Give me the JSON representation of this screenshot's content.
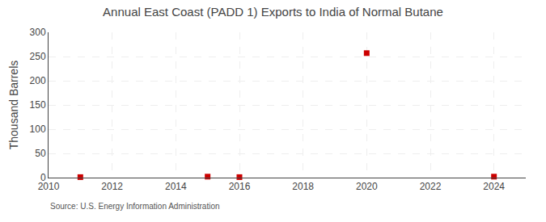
{
  "chart_data": {
    "type": "scatter",
    "title": "Annual East Coast (PADD 1) Exports to India of Normal Butane",
    "ylabel": "Thousand Barrels",
    "annotations": [
      "Source: U.S. Energy Information Administration"
    ],
    "x": [
      2011,
      2015,
      2016,
      2020,
      2024
    ],
    "values": [
      1,
      2,
      1,
      257,
      2
    ],
    "color": "#cc0000",
    "marker": "square",
    "xlim": [
      2010,
      2025
    ],
    "xticks": [
      2010,
      2012,
      2014,
      2016,
      2018,
      2020,
      2022,
      2024
    ],
    "ylim": [
      0,
      300
    ],
    "yticks": [
      0,
      50,
      100,
      150,
      200,
      250,
      300
    ],
    "grid": true
  }
}
